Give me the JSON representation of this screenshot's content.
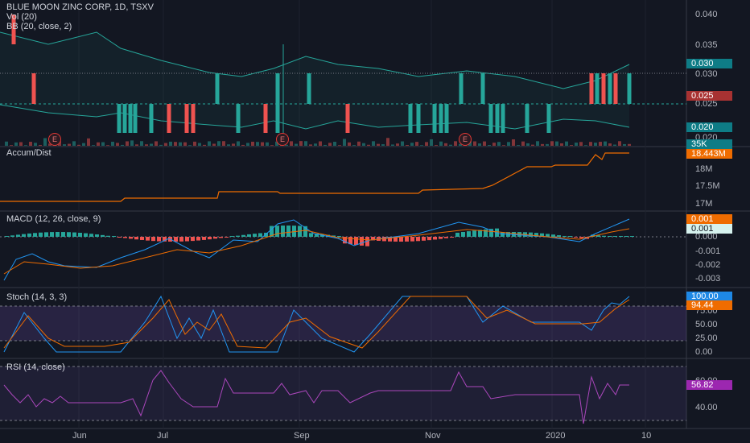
{
  "header": {
    "title": "BLUE MOON ZINC CORP, 1D, TSXV",
    "indicators": [
      "Vol (20)",
      "BB (20, close, 2)"
    ]
  },
  "panes": {
    "price": {
      "ticks": [
        "0.040",
        "0.035",
        "0.030",
        "0.025",
        "0.020"
      ],
      "badges": [
        {
          "text": "0.030",
          "color": "#0e7c86"
        },
        {
          "text": "0.025",
          "color": "#a83232"
        },
        {
          "text": "0.020",
          "color": "#0e7c86"
        },
        {
          "text": "0.020",
          "color": "#131722"
        },
        {
          "text": "35K",
          "color": "#0e7c86"
        }
      ],
      "earnings_marker": "E"
    },
    "accum": {
      "label": "Accum/Dist",
      "ticks": [
        "18M",
        "17.5M",
        "17M"
      ],
      "badge": {
        "text": "18.443M",
        "color": "#ef6c00"
      }
    },
    "macd": {
      "label": "MACD (12, 26, close, 9)",
      "ticks": [
        "0.000",
        "-0.001",
        "-0.002",
        "-0.003"
      ],
      "badges": [
        {
          "text": "0.001",
          "color": "#ef6c00"
        },
        {
          "text": "0.001",
          "color": "#d6f2ee",
          "text_color": "#131722"
        }
      ]
    },
    "stoch": {
      "label": "Stoch (14, 3, 3)",
      "ticks": [
        "75.00",
        "50.00",
        "25.00",
        "0.00"
      ],
      "badges": [
        {
          "text": "100.00",
          "color": "#1e88e5"
        },
        {
          "text": "94.44",
          "color": "#ef6c00"
        }
      ]
    },
    "rsi": {
      "label": "RSI (14, close)",
      "ticks": [
        "60.00",
        "40.00"
      ],
      "badge": {
        "text": "56.82",
        "color": "#9c27b0"
      }
    }
  },
  "x_axis": [
    "Jun",
    "Jul",
    "Sep",
    "Nov",
    "2020",
    "10"
  ],
  "colors": {
    "up": "#26a69a",
    "down": "#ef5350",
    "bb": "#26a69a",
    "accum": "#ef6c00",
    "macd": "#2196f3",
    "signal": "#ef6c00",
    "stoch_k": "#2196f3",
    "stoch_d": "#ef6c00",
    "rsi": "#ab47bc"
  }
}
